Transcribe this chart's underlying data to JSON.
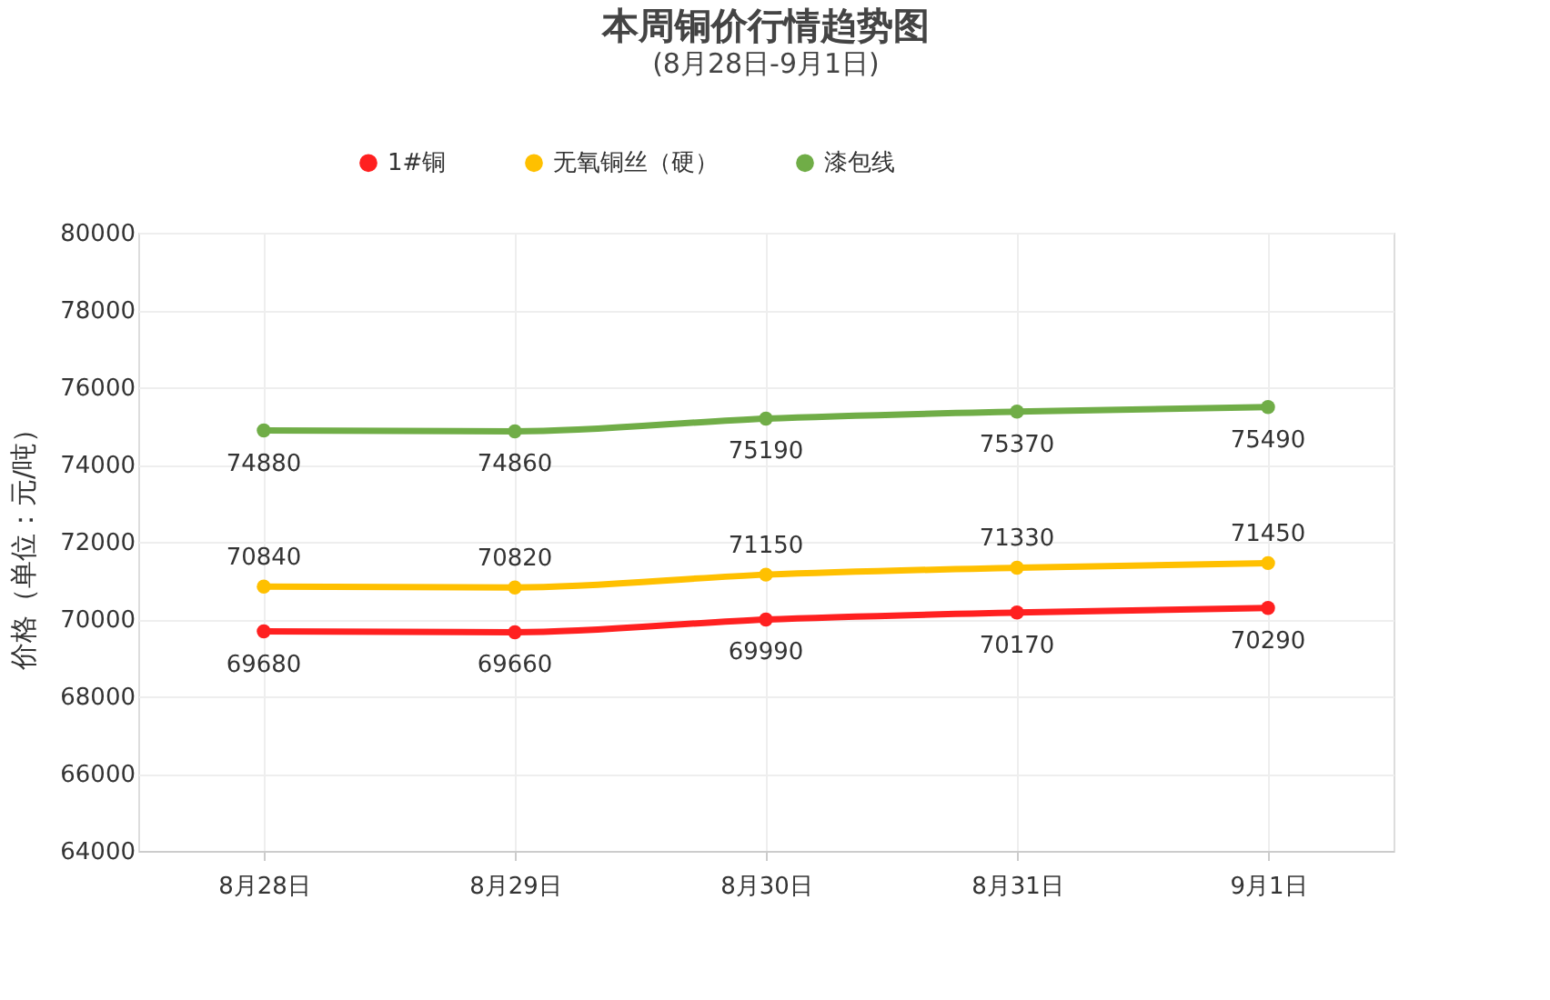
{
  "chart_data": {
    "type": "line",
    "title": "本周铜价行情趋势图",
    "subtitle": "(8月28日-9月1日)",
    "ylabel": "价格（单位：元/吨）",
    "categories": [
      "8月28日",
      "8月29日",
      "8月30日",
      "8月31日",
      "9月1日"
    ],
    "series": [
      {
        "name": "1#铜",
        "color": "#ff2020",
        "values": [
          69680,
          69660,
          69990,
          70170,
          70290
        ]
      },
      {
        "name": "无氧铜丝（硬）",
        "color": "#ffc000",
        "values": [
          70840,
          70820,
          71150,
          71330,
          71450
        ]
      },
      {
        "name": "漆包线",
        "color": "#70ad47",
        "values": [
          74880,
          74860,
          75190,
          75370,
          75490
        ]
      }
    ],
    "ylim": [
      64000,
      80000
    ],
    "yticks": [
      64000,
      66000,
      68000,
      70000,
      72000,
      74000,
      76000,
      78000,
      80000
    ],
    "grid": true,
    "legend": "top",
    "marker": "circle",
    "line_style": "solid",
    "data_labels": true
  }
}
